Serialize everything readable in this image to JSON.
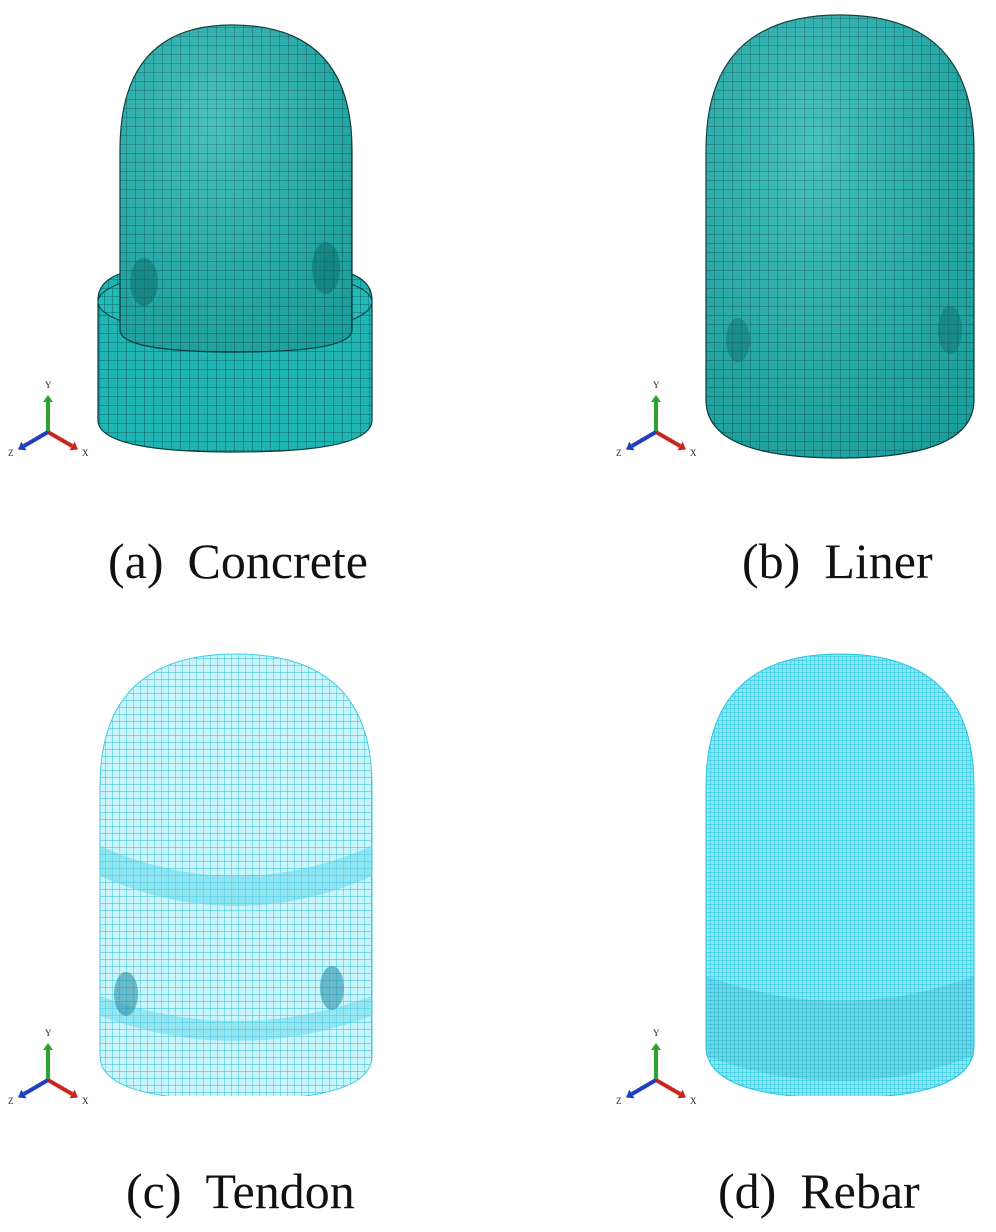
{
  "colors": {
    "solid_mesh_fill": "#1fb5b3",
    "solid_mesh_line": "#0d4a4a",
    "wire_mesh_fill": "#7ee8f2",
    "wire_mesh_line": "#1ab8d8",
    "axis_x": "#c8281e",
    "axis_y": "#2aa52a",
    "axis_z": "#1e3fc0"
  },
  "axis_triad": {
    "x": "X",
    "y": "Y",
    "z": "Z"
  },
  "panels": [
    {
      "id": "a",
      "tag": "(a)",
      "label": "Concrete",
      "style": "solid-mesh"
    },
    {
      "id": "b",
      "tag": "(b)",
      "label": "Liner",
      "style": "solid-mesh"
    },
    {
      "id": "c",
      "tag": "(c)",
      "label": "Tendon",
      "style": "wireframe"
    },
    {
      "id": "d",
      "tag": "(d)",
      "label": "Rebar",
      "style": "wireframe"
    }
  ]
}
